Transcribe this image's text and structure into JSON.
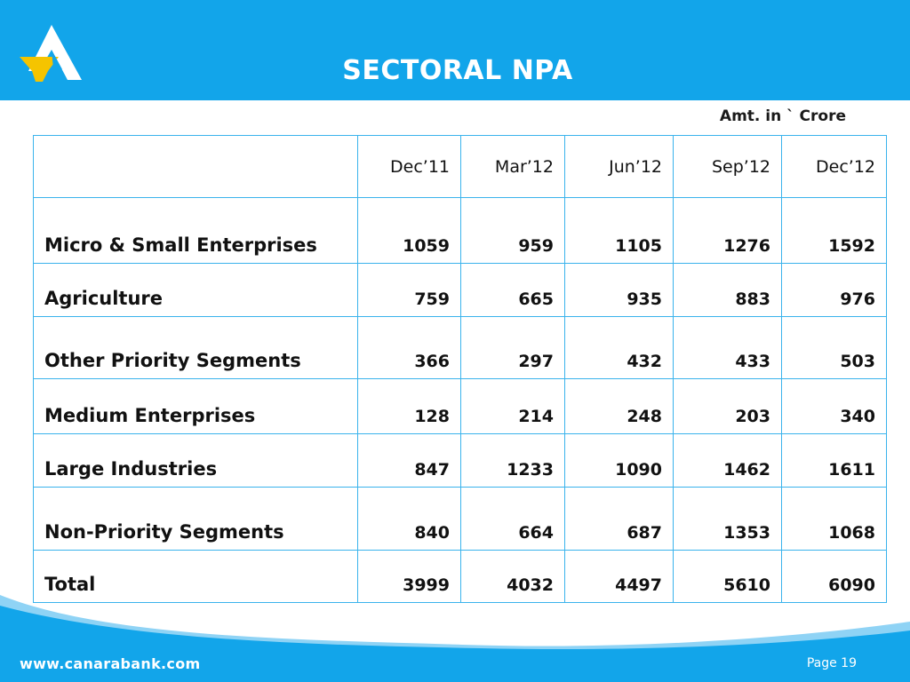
{
  "header": {
    "title": "SECTORAL NPA",
    "brand_color": "#12a5ea",
    "logo_icon": "canara-bank-logo-icon"
  },
  "note": "Amt. in ` Crore",
  "table": {
    "columns": [
      "",
      "Dec’11",
      "Mar’12",
      "Jun’12",
      "Sep’12",
      "Dec’12"
    ],
    "rows": [
      {
        "label": "Micro & Small Enterprises",
        "values": [
          "1059",
          "959",
          "1105",
          "1276",
          "1592"
        ]
      },
      {
        "label": "Agriculture",
        "values": [
          "759",
          "665",
          "935",
          "883",
          "976"
        ]
      },
      {
        "label": "Other Priority Segments",
        "values": [
          "366",
          "297",
          "432",
          "433",
          "503"
        ]
      },
      {
        "label": "Medium Enterprises",
        "values": [
          "128",
          "214",
          "248",
          "203",
          "340"
        ]
      },
      {
        "label": "Large Industries",
        "values": [
          "847",
          "1233",
          "1090",
          "1462",
          "1611"
        ]
      },
      {
        "label": "Non-Priority Segments",
        "values": [
          "840",
          "664",
          "687",
          "1353",
          "1068"
        ]
      },
      {
        "label": "Total",
        "values": [
          "3999",
          "4032",
          "4497",
          "5610",
          "6090"
        ]
      }
    ]
  },
  "footer": {
    "url": "www.canarabank.com",
    "page_label": "Page",
    "page_number": "19"
  }
}
